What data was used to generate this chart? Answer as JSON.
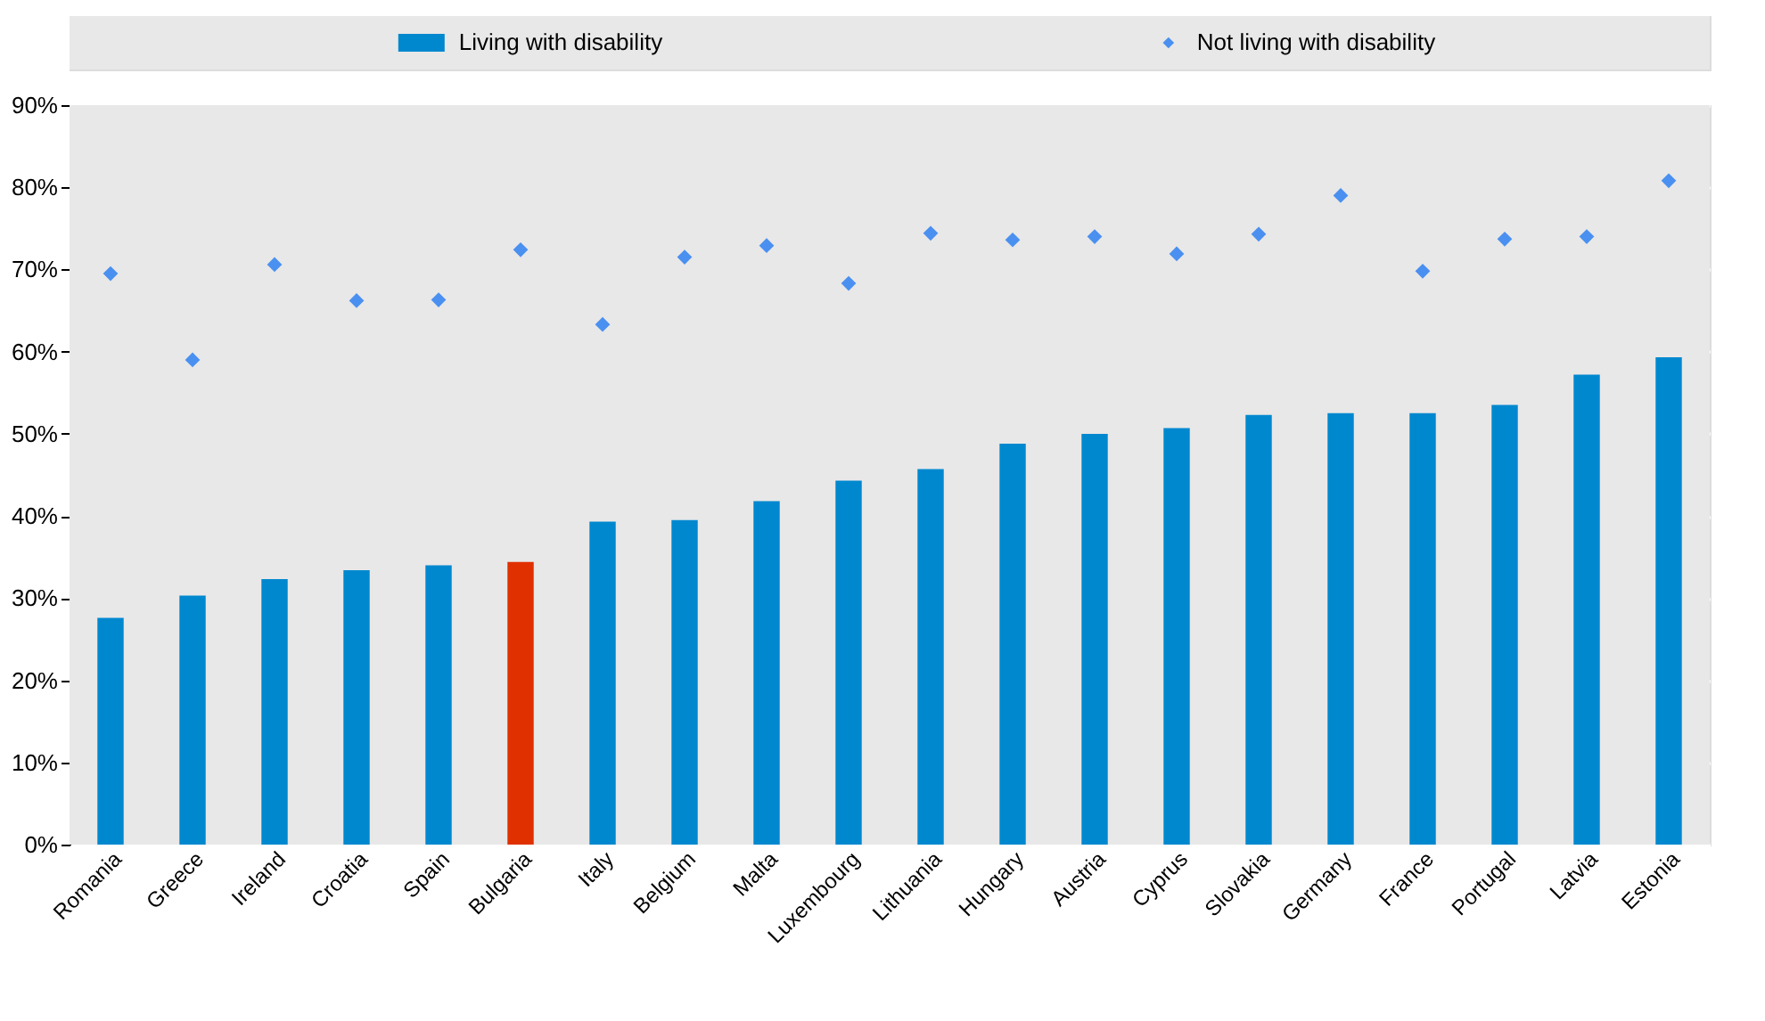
{
  "chart_data": {
    "type": "bar",
    "categories": [
      "Romania",
      "Greece",
      "Ireland",
      "Croatia",
      "Spain",
      "Bulgaria",
      "Italy",
      "Belgium",
      "Malta",
      "Luxembourg",
      "Lithuania",
      "Hungary",
      "Austria",
      "Cyprus",
      "Slovakia",
      "Germany",
      "France",
      "Portugal",
      "Latvia",
      "Estonia"
    ],
    "series": [
      {
        "name": "Living with disability",
        "color": "#0088cf",
        "colors": [
          "#0088cf",
          "#0088cf",
          "#0088cf",
          "#0088cf",
          "#0088cf",
          "#e03000",
          "#0088cf",
          "#0088cf",
          "#0088cf",
          "#0088cf",
          "#0088cf",
          "#0088cf",
          "#0088cf",
          "#0088cf",
          "#0088cf",
          "#0088cf",
          "#0088cf",
          "#0088cf",
          "#0088cf",
          "#0088cf"
        ],
        "values": [
          27.6,
          30.3,
          32.3,
          33.4,
          34.0,
          34.4,
          39.3,
          39.5,
          41.8,
          44.3,
          45.7,
          48.8,
          50.0,
          50.7,
          52.3,
          52.5,
          52.5,
          53.5,
          57.2,
          59.3
        ]
      },
      {
        "name": "Not living with disability",
        "type": "scatter",
        "marker": "diamond",
        "color": "#4a90f0",
        "values": [
          69.5,
          59.0,
          70.6,
          66.2,
          66.3,
          72.4,
          63.3,
          71.5,
          72.9,
          68.3,
          74.4,
          73.6,
          74.0,
          71.9,
          74.3,
          79.0,
          69.8,
          73.7,
          74.0,
          80.8
        ]
      }
    ],
    "ylim": [
      0,
      90
    ],
    "yticks": [
      {
        "value": 0,
        "label": "0%"
      },
      {
        "value": 10,
        "label": "10%"
      },
      {
        "value": 20,
        "label": "20%"
      },
      {
        "value": 30,
        "label": "30%"
      },
      {
        "value": 40,
        "label": "40%"
      },
      {
        "value": 50,
        "label": "50%"
      },
      {
        "value": 60,
        "label": "60%"
      },
      {
        "value": 70,
        "label": "70%"
      },
      {
        "value": 80,
        "label": "80%"
      },
      {
        "value": 90,
        "label": "90%"
      }
    ],
    "grid": true,
    "legend": "top"
  }
}
